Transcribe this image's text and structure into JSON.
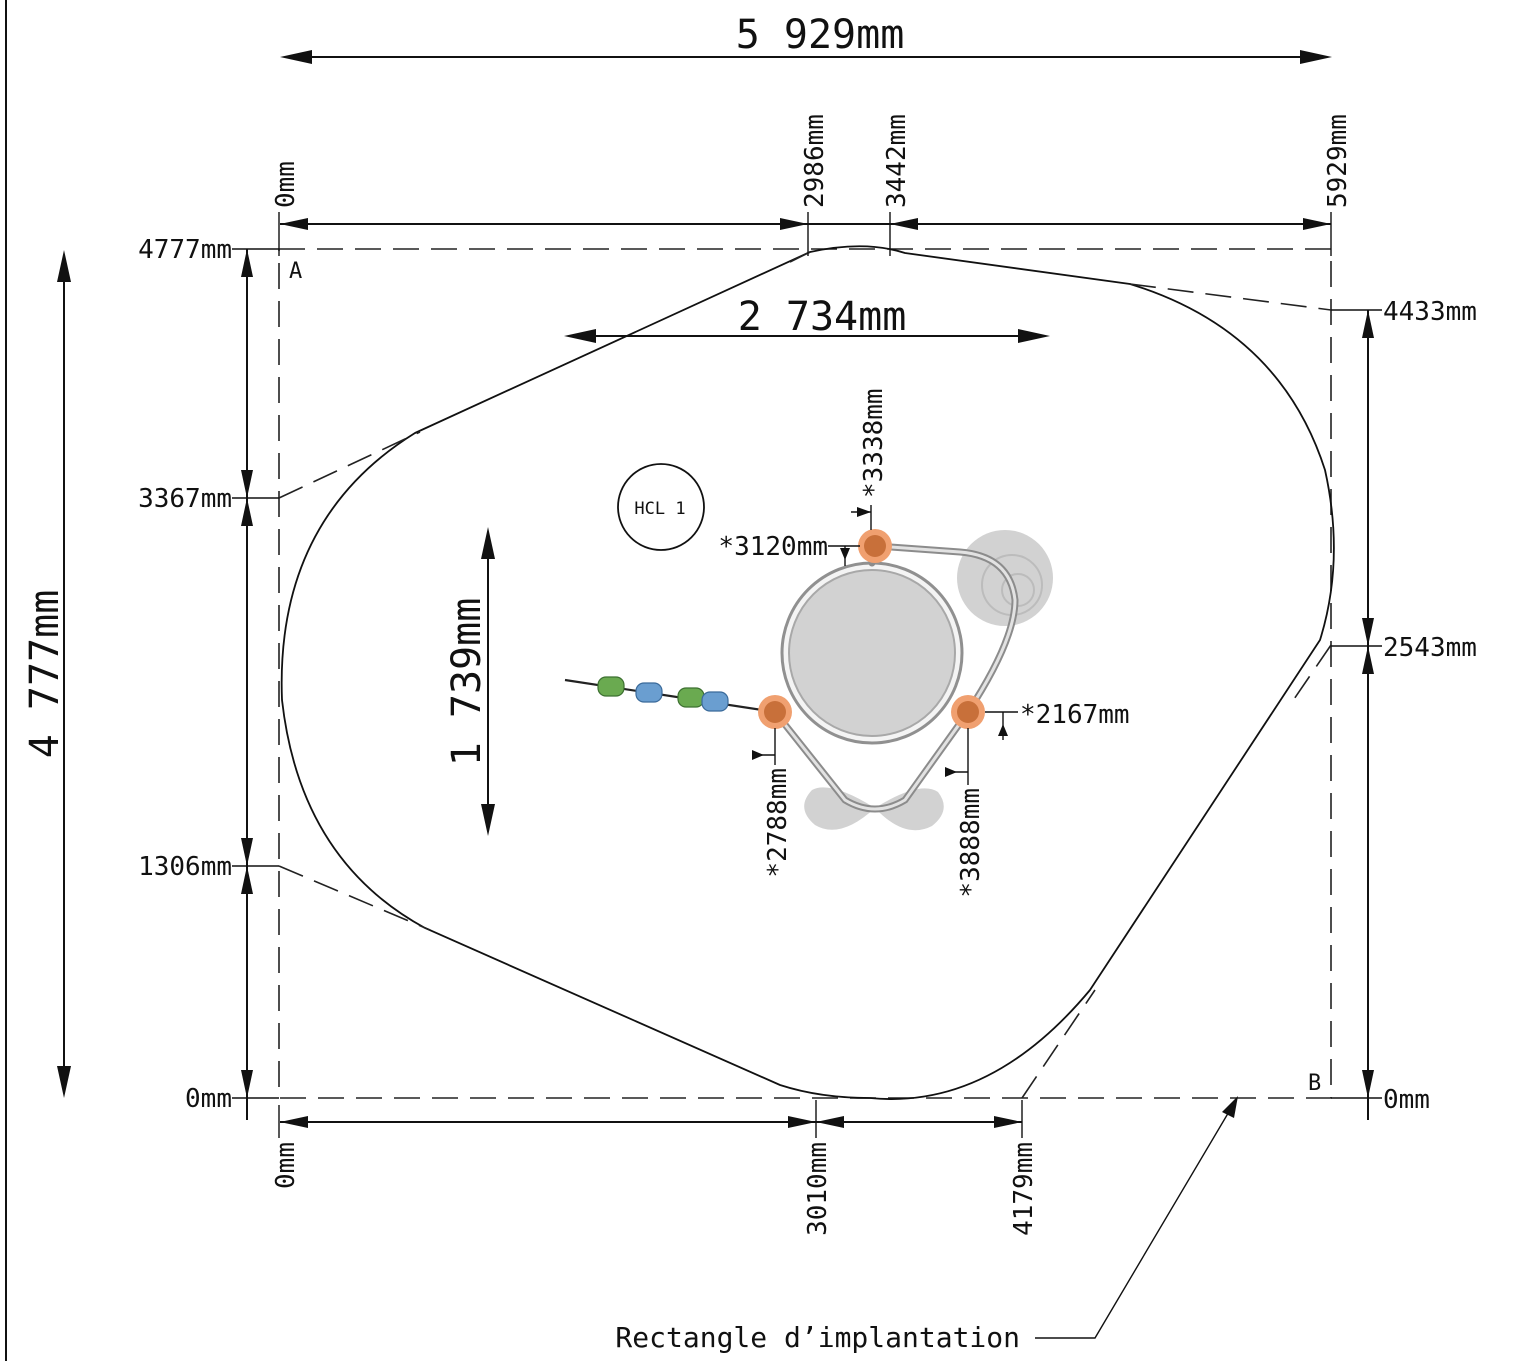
{
  "overall": {
    "width_label": "5 929mm",
    "height_label": "4 777mm"
  },
  "top_ticks": [
    "0mm",
    "2986mm",
    "3442mm",
    "5929mm"
  ],
  "bottom_ticks": [
    "0mm",
    "3010mm",
    "4179mm"
  ],
  "left_ticks": [
    "4777mm",
    "3367mm",
    "1306mm",
    "0mm"
  ],
  "right_ticks": [
    "4433mm",
    "2543mm",
    "0mm"
  ],
  "corners": {
    "a": "A",
    "b": "B"
  },
  "inner": {
    "width_label": "2 734mm",
    "height_label": "1 739mm"
  },
  "heights": {
    "h3338": "*3338mm",
    "h3120": "*3120mm",
    "h2167": "*2167mm",
    "h2788": "*2788mm",
    "h3888": "*3888mm"
  },
  "hcl_label": "HCL 1",
  "caption": "Rectangle d’implantation",
  "colors": {
    "ball": "#c8703a",
    "ball_glow": "#f0a070",
    "bead_green": "#6aaa50",
    "bead_blue": "#6a9ed0"
  }
}
